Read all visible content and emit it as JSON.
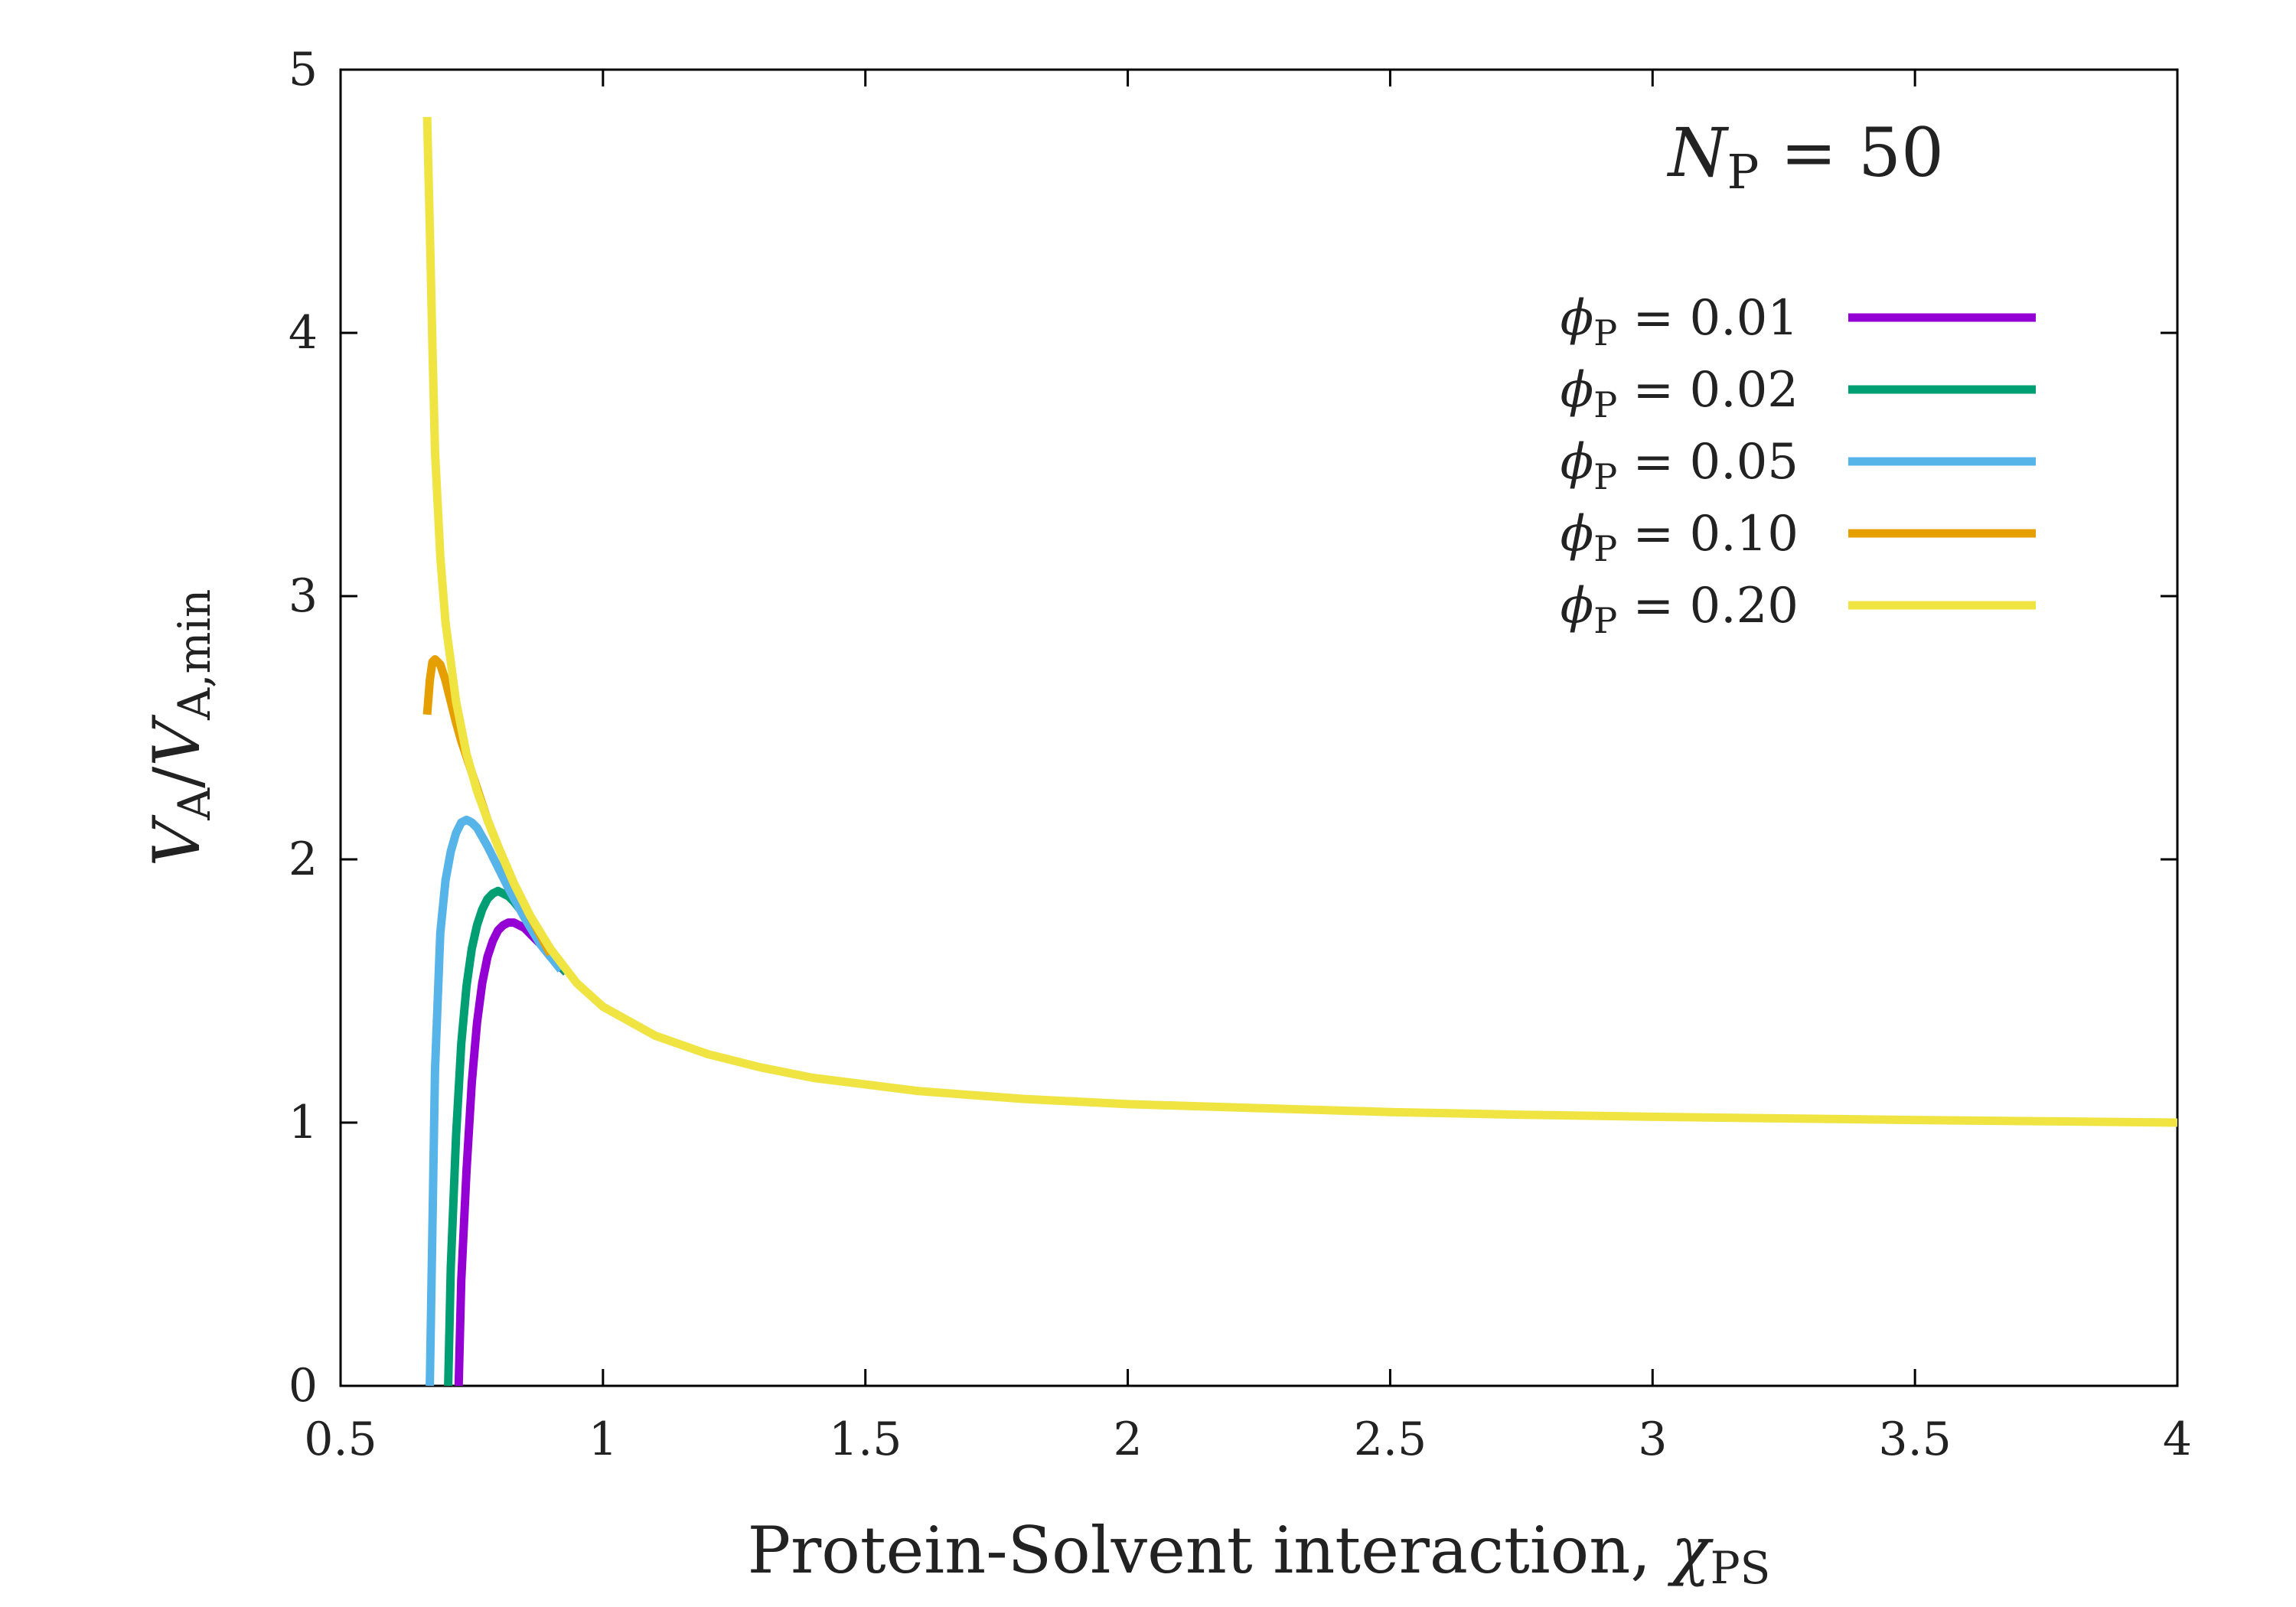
{
  "chart_data": {
    "type": "line",
    "xlabel": "Protein-Solvent interaction, ",
    "xlabel_symbol": "χ",
    "xlabel_sub": "PS",
    "ylabel": {
      "v1": "V",
      "s1": "A",
      "slash": "/",
      "v2": "V",
      "s2": "A,min"
    },
    "xlim": [
      0.5,
      4
    ],
    "ylim": [
      0,
      5
    ],
    "xticks": [
      0.5,
      1,
      1.5,
      2,
      2.5,
      3,
      3.5,
      4
    ],
    "xtick_labels": [
      "0.5",
      "1",
      "1.5",
      "2",
      "2.5",
      "3",
      "3.5",
      "4"
    ],
    "yticks": [
      0,
      1,
      2,
      3,
      4,
      5
    ],
    "ytick_labels": [
      "0",
      "1",
      "2",
      "3",
      "4",
      "5"
    ],
    "annotation": {
      "symbol": "N",
      "sub": "P",
      "rest": " = 50"
    },
    "legend_position": "top-right",
    "legend_symbol": "ϕ",
    "legend_sub": "P",
    "series": [
      {
        "name": "ϕP = 0.01",
        "value_text": " = 0.01",
        "color": "#9400d3",
        "x": [
          0.725,
          0.73,
          0.74,
          0.75,
          0.76,
          0.77,
          0.78,
          0.79,
          0.8,
          0.81,
          0.82,
          0.83,
          0.84,
          0.85,
          0.86,
          0.88,
          0.9,
          0.93
        ],
        "y": [
          0,
          0.4,
          0.82,
          1.15,
          1.38,
          1.53,
          1.63,
          1.69,
          1.73,
          1.75,
          1.76,
          1.76,
          1.75,
          1.74,
          1.72,
          1.68,
          1.63,
          1.57
        ]
      },
      {
        "name": "ϕP = 0.02",
        "value_text": " = 0.02",
        "color": "#009e73",
        "x": [
          0.705,
          0.71,
          0.72,
          0.73,
          0.74,
          0.75,
          0.76,
          0.77,
          0.78,
          0.79,
          0.8,
          0.81,
          0.82,
          0.83,
          0.85,
          0.87,
          0.9,
          0.93
        ],
        "y": [
          0,
          0.45,
          0.95,
          1.3,
          1.52,
          1.66,
          1.75,
          1.81,
          1.85,
          1.87,
          1.88,
          1.87,
          1.86,
          1.84,
          1.79,
          1.73,
          1.64,
          1.57
        ]
      },
      {
        "name": "ϕP = 0.05",
        "value_text": " = 0.05",
        "color": "#56b4e9",
        "x": [
          0.67,
          0.675,
          0.68,
          0.69,
          0.7,
          0.71,
          0.72,
          0.73,
          0.74,
          0.75,
          0.76,
          0.78,
          0.8,
          0.82,
          0.85,
          0.88,
          0.92
        ],
        "y": [
          0,
          0.6,
          1.2,
          1.72,
          1.92,
          2.03,
          2.1,
          2.14,
          2.15,
          2.14,
          2.12,
          2.05,
          1.97,
          1.89,
          1.78,
          1.68,
          1.58
        ]
      },
      {
        "name": "ϕP = 0.10",
        "value_text": " = 0.10",
        "color": "#e69f00",
        "x": [
          0.665,
          0.67,
          0.675,
          0.68,
          0.69,
          0.7,
          0.71,
          0.72,
          0.73,
          0.74,
          0.76,
          0.78,
          0.8,
          0.83,
          0.86,
          0.9
        ],
        "y": [
          2.55,
          2.68,
          2.75,
          2.76,
          2.74,
          2.68,
          2.6,
          2.52,
          2.45,
          2.39,
          2.27,
          2.15,
          2.05,
          1.91,
          1.79,
          1.64
        ]
      },
      {
        "name": "ϕP = 0.20",
        "value_text": " = 0.20",
        "color": "#f0e442",
        "x": [
          0.665,
          0.67,
          0.675,
          0.68,
          0.69,
          0.7,
          0.72,
          0.74,
          0.76,
          0.78,
          0.8,
          0.83,
          0.86,
          0.9,
          0.95,
          1.0,
          1.1,
          1.2,
          1.3,
          1.4,
          1.5,
          1.6,
          1.8,
          2.0,
          2.25,
          2.5,
          2.75,
          3.0,
          3.25,
          3.5,
          3.75,
          4.0
        ],
        "y": [
          4.82,
          4.4,
          3.95,
          3.55,
          3.15,
          2.9,
          2.6,
          2.4,
          2.26,
          2.15,
          2.05,
          1.91,
          1.79,
          1.66,
          1.53,
          1.44,
          1.33,
          1.26,
          1.21,
          1.17,
          1.145,
          1.12,
          1.09,
          1.07,
          1.055,
          1.04,
          1.03,
          1.022,
          1.016,
          1.01,
          1.005,
          1.0
        ]
      }
    ]
  }
}
